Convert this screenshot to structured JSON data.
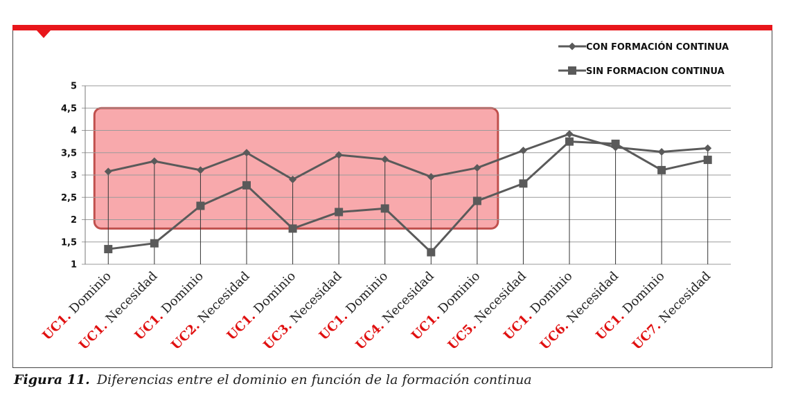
{
  "colors": {
    "top_bar": "#e8161b",
    "highlight_fill": "#f79a9e",
    "highlight_stroke": "#c0504d",
    "series_line": "#5a5a5a",
    "grid": "#9a9a9a",
    "label_red": "#e01010"
  },
  "caption": {
    "figure_label": "Figura 11.",
    "text": "Diferencias entre el dominio en función de la formación continua"
  },
  "chart_data": {
    "type": "line",
    "title": "",
    "xlabel": "",
    "ylabel": "",
    "ylim": [
      1,
      5
    ],
    "yticks": [
      "1",
      "1,5",
      "2",
      "2,5",
      "3",
      "3,5",
      "4",
      "4,5",
      "5"
    ],
    "grid": true,
    "legend_position": "top-right",
    "categories": [
      {
        "prefix": "UC1.",
        "label": " Dominio"
      },
      {
        "prefix": "UC1.",
        "label": " Necesidad"
      },
      {
        "prefix": "UC1.",
        "label": " Dominio"
      },
      {
        "prefix": "UC2.",
        "label": " Necesidad"
      },
      {
        "prefix": "UC1.",
        "label": " Dominio"
      },
      {
        "prefix": "UC3.",
        "label": " Necesidad"
      },
      {
        "prefix": "UC1.",
        "label": " Dominio"
      },
      {
        "prefix": "UC4.",
        "label": " Necesidad"
      },
      {
        "prefix": "UC1.",
        "label": " Dominio"
      },
      {
        "prefix": "UC5.",
        "label": " Necesidad"
      },
      {
        "prefix": "UC1.",
        "label": " Dominio"
      },
      {
        "prefix": "UC6.",
        "label": " Necesidad"
      },
      {
        "prefix": "UC1.",
        "label": " Dominio"
      },
      {
        "prefix": "UC7.",
        "label": " Necesidad"
      }
    ],
    "series": [
      {
        "name": "CON FORMACIÓN CONTINUA",
        "marker": "diamond",
        "values": [
          3.08,
          3.31,
          3.11,
          3.5,
          2.9,
          3.45,
          3.35,
          2.96,
          3.16,
          3.55,
          3.92,
          3.62,
          3.52,
          3.6
        ]
      },
      {
        "name": "SIN FORMACION CONTINUA",
        "marker": "square",
        "values": [
          1.34,
          1.47,
          2.31,
          2.77,
          1.8,
          2.17,
          2.25,
          1.27,
          2.42,
          2.81,
          3.75,
          3.7,
          3.11,
          3.34
        ]
      }
    ],
    "highlight_region": {
      "from_category": 0,
      "to_category": 8,
      "y_from": 1.8,
      "y_to": 4.5
    }
  }
}
